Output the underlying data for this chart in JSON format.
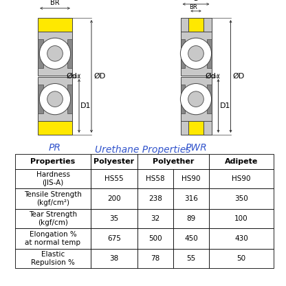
{
  "title": "Urethane Properties",
  "title_color": "#3355cc",
  "bg_color": "#ffffff",
  "rows": [
    [
      "Tensile Strength\n(kgf/cm²)",
      "200",
      "238",
      "316",
      "350"
    ],
    [
      "Tear Strength\n(kgf/cm)",
      "35",
      "32",
      "89",
      "100"
    ],
    [
      "Elongation %\nat normal temp",
      "675",
      "500",
      "450",
      "430"
    ],
    [
      "Elastic\nRepulsion %",
      "38",
      "78",
      "55",
      "50"
    ]
  ],
  "yellow_color": "#FFE800",
  "light_gray": "#c8c8c8",
  "dark_gray": "#888888",
  "mid_gray": "#aaaaaa",
  "blue_label": "#3355cc",
  "line_color": "#444444"
}
